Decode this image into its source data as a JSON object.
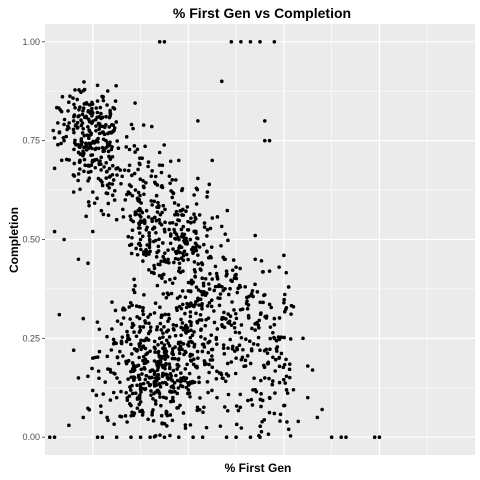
{
  "chart_data": {
    "type": "scatter",
    "title": "% First Gen vs Completion",
    "xlabel": "% First Gen",
    "ylabel": "Completion",
    "xlim": [
      0.0,
      0.9
    ],
    "ylim": [
      -0.045,
      1.045
    ],
    "y_ticks": [
      0.0,
      0.25,
      0.5,
      0.75,
      1.0
    ],
    "y_tick_labels": [
      "0.00",
      "0.25",
      "0.50",
      "0.75",
      "1.00"
    ],
    "x_gridlines": [
      0.1,
      0.2,
      0.3,
      0.4,
      0.5,
      0.6,
      0.7,
      0.8
    ],
    "x_tick_labels": [],
    "grid": true,
    "legend": "none",
    "point_color": "#000000",
    "panel_color": "#EBEBEB",
    "gridline_color": "#FFFFFF",
    "points": [
      [
        0.24,
        1.0
      ],
      [
        0.25,
        1.0
      ],
      [
        0.39,
        1.0
      ],
      [
        0.41,
        1.0
      ],
      [
        0.43,
        1.0
      ],
      [
        0.45,
        1.0
      ],
      [
        0.48,
        1.0
      ],
      [
        0.37,
        0.9
      ],
      [
        0.46,
        0.8
      ],
      [
        0.11,
        0.89
      ],
      [
        0.11,
        0.85
      ],
      [
        0.32,
        0.8
      ],
      [
        0.34,
        0.62
      ],
      [
        0.46,
        0.75
      ],
      [
        0.47,
        0.75
      ],
      [
        0.24,
        0.72
      ],
      [
        0.28,
        0.7
      ],
      [
        0.35,
        0.7
      ],
      [
        0.14,
        0.79
      ],
      [
        0.08,
        0.78
      ],
      [
        0.06,
        0.8
      ],
      [
        0.1,
        0.82
      ],
      [
        0.13,
        0.84
      ],
      [
        0.03,
        0.77
      ],
      [
        0.04,
        0.75
      ],
      [
        0.02,
        0.68
      ],
      [
        0.06,
        0.62
      ],
      [
        0.1,
        0.62
      ],
      [
        0.1,
        0.52
      ],
      [
        0.07,
        0.45
      ],
      [
        0.09,
        0.44
      ],
      [
        0.04,
        0.5
      ],
      [
        0.02,
        0.52
      ],
      [
        0.15,
        0.55
      ],
      [
        0.18,
        0.55
      ],
      [
        0.2,
        0.5
      ],
      [
        0.22,
        0.47
      ],
      [
        0.25,
        0.45
      ],
      [
        0.28,
        0.42
      ],
      [
        0.3,
        0.37
      ],
      [
        0.31,
        0.48
      ],
      [
        0.35,
        0.4
      ],
      [
        0.38,
        0.42
      ],
      [
        0.4,
        0.43
      ],
      [
        0.44,
        0.45
      ],
      [
        0.47,
        0.42
      ],
      [
        0.49,
        0.43
      ],
      [
        0.5,
        0.46
      ],
      [
        0.44,
        0.51
      ],
      [
        0.46,
        0.36
      ],
      [
        0.48,
        0.3
      ],
      [
        0.5,
        0.34
      ],
      [
        0.51,
        0.38
      ],
      [
        0.52,
        0.33
      ],
      [
        0.54,
        0.25
      ],
      [
        0.55,
        0.18
      ],
      [
        0.49,
        0.2
      ],
      [
        0.45,
        0.22
      ],
      [
        0.46,
        0.15
      ],
      [
        0.47,
        0.1
      ],
      [
        0.48,
        0.06
      ],
      [
        0.5,
        0.08
      ],
      [
        0.52,
        0.12
      ],
      [
        0.57,
        0.05
      ],
      [
        0.6,
        0.0
      ],
      [
        0.62,
        0.0
      ],
      [
        0.63,
        0.0
      ],
      [
        0.69,
        0.0
      ],
      [
        0.7,
        0.0
      ],
      [
        0.01,
        0.0
      ],
      [
        0.02,
        0.0
      ],
      [
        0.11,
        0.0
      ],
      [
        0.12,
        0.0
      ],
      [
        0.15,
        0.0
      ],
      [
        0.18,
        0.0
      ],
      [
        0.2,
        0.0
      ],
      [
        0.22,
        0.0
      ],
      [
        0.25,
        0.0
      ],
      [
        0.28,
        0.0
      ],
      [
        0.31,
        0.0
      ],
      [
        0.33,
        0.0
      ],
      [
        0.38,
        0.0
      ],
      [
        0.4,
        0.0
      ],
      [
        0.43,
        0.0
      ],
      [
        0.45,
        0.0
      ],
      [
        0.08,
        0.3
      ],
      [
        0.06,
        0.22
      ],
      [
        0.03,
        0.31
      ],
      [
        0.07,
        0.15
      ],
      [
        0.1,
        0.2
      ],
      [
        0.13,
        0.05
      ],
      [
        0.15,
        0.1
      ],
      [
        0.08,
        0.05
      ],
      [
        0.05,
        0.03
      ],
      [
        0.18,
        0.08
      ],
      [
        0.22,
        0.15
      ],
      [
        0.24,
        0.25
      ],
      [
        0.26,
        0.3
      ],
      [
        0.28,
        0.18
      ],
      [
        0.3,
        0.12
      ],
      [
        0.32,
        0.2
      ],
      [
        0.34,
        0.14
      ],
      [
        0.36,
        0.1
      ],
      [
        0.38,
        0.16
      ],
      [
        0.4,
        0.2
      ],
      [
        0.42,
        0.18
      ],
      [
        0.44,
        0.12
      ],
      [
        0.56,
        0.17
      ],
      [
        0.55,
        0.1
      ],
      [
        0.58,
        0.07
      ],
      [
        0.53,
        0.04
      ],
      [
        0.51,
        0.02
      ]
    ]
  }
}
